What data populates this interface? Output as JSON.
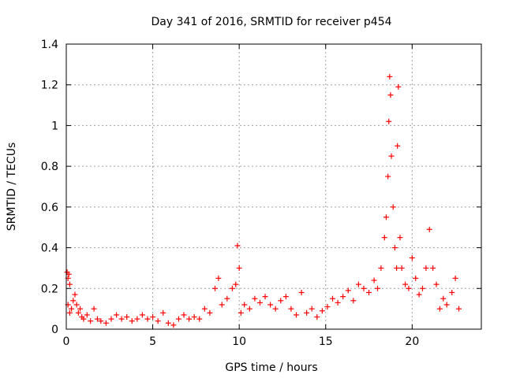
{
  "chart_data": {
    "type": "scatter",
    "title": "Day 341 of 2016, SRMTID for receiver p454",
    "xlabel": "GPS time / hours",
    "ylabel": "SRMTID / TECUs",
    "xlim": [
      0,
      24
    ],
    "ylim": [
      0,
      1.4
    ],
    "xticks": [
      0,
      5,
      10,
      15,
      20
    ],
    "xtick_labels": [
      "0",
      "5",
      "10",
      "15",
      "20"
    ],
    "yticks": [
      0,
      0.2,
      0.4,
      0.6,
      0.8,
      1.0,
      1.2,
      1.4
    ],
    "ytick_labels": [
      "0",
      "0.2",
      "0.4",
      "0.6",
      "0.8",
      "1",
      "1.2",
      "1.4"
    ],
    "grid": true,
    "marker": "plus",
    "series": [
      {
        "name": "p454",
        "color": "#ff0000",
        "points": [
          [
            0.05,
            0.28
          ],
          [
            0.1,
            0.25
          ],
          [
            0.15,
            0.27
          ],
          [
            0.2,
            0.22
          ],
          [
            0.1,
            0.12
          ],
          [
            0.2,
            0.08
          ],
          [
            0.3,
            0.1
          ],
          [
            0.4,
            0.14
          ],
          [
            0.5,
            0.17
          ],
          [
            0.6,
            0.12
          ],
          [
            0.7,
            0.08
          ],
          [
            0.8,
            0.1
          ],
          [
            0.9,
            0.06
          ],
          [
            1.0,
            0.05
          ],
          [
            1.2,
            0.07
          ],
          [
            1.4,
            0.04
          ],
          [
            1.6,
            0.1
          ],
          [
            1.8,
            0.05
          ],
          [
            2.0,
            0.04
          ],
          [
            2.3,
            0.03
          ],
          [
            2.6,
            0.05
          ],
          [
            2.9,
            0.07
          ],
          [
            3.2,
            0.05
          ],
          [
            3.5,
            0.06
          ],
          [
            3.8,
            0.04
          ],
          [
            4.1,
            0.05
          ],
          [
            4.4,
            0.07
          ],
          [
            4.7,
            0.05
          ],
          [
            5.0,
            0.06
          ],
          [
            5.3,
            0.04
          ],
          [
            5.6,
            0.08
          ],
          [
            5.9,
            0.03
          ],
          [
            6.2,
            0.02
          ],
          [
            6.5,
            0.05
          ],
          [
            6.8,
            0.07
          ],
          [
            7.1,
            0.05
          ],
          [
            7.4,
            0.06
          ],
          [
            7.7,
            0.05
          ],
          [
            8.0,
            0.1
          ],
          [
            8.3,
            0.08
          ],
          [
            8.6,
            0.2
          ],
          [
            8.8,
            0.25
          ],
          [
            9.0,
            0.12
          ],
          [
            9.3,
            0.15
          ],
          [
            9.6,
            0.2
          ],
          [
            9.8,
            0.22
          ],
          [
            9.9,
            0.41
          ],
          [
            10.0,
            0.3
          ],
          [
            10.1,
            0.08
          ],
          [
            10.3,
            0.12
          ],
          [
            10.6,
            0.1
          ],
          [
            10.9,
            0.15
          ],
          [
            11.2,
            0.13
          ],
          [
            11.5,
            0.16
          ],
          [
            11.8,
            0.12
          ],
          [
            12.1,
            0.1
          ],
          [
            12.4,
            0.14
          ],
          [
            12.7,
            0.16
          ],
          [
            13.0,
            0.1
          ],
          [
            13.3,
            0.07
          ],
          [
            13.6,
            0.18
          ],
          [
            13.9,
            0.08
          ],
          [
            14.2,
            0.1
          ],
          [
            14.5,
            0.06
          ],
          [
            14.8,
            0.09
          ],
          [
            15.1,
            0.11
          ],
          [
            15.4,
            0.15
          ],
          [
            15.7,
            0.13
          ],
          [
            16.0,
            0.16
          ],
          [
            16.3,
            0.19
          ],
          [
            16.6,
            0.14
          ],
          [
            16.9,
            0.22
          ],
          [
            17.2,
            0.2
          ],
          [
            17.5,
            0.18
          ],
          [
            17.8,
            0.24
          ],
          [
            18.0,
            0.2
          ],
          [
            18.2,
            0.3
          ],
          [
            18.4,
            0.45
          ],
          [
            18.5,
            0.55
          ],
          [
            18.6,
            0.75
          ],
          [
            18.65,
            1.02
          ],
          [
            18.7,
            1.24
          ],
          [
            18.75,
            1.15
          ],
          [
            18.8,
            0.85
          ],
          [
            18.9,
            0.6
          ],
          [
            19.0,
            0.4
          ],
          [
            19.1,
            0.3
          ],
          [
            19.15,
            0.9
          ],
          [
            19.2,
            1.19
          ],
          [
            19.3,
            0.45
          ],
          [
            19.4,
            0.3
          ],
          [
            19.6,
            0.22
          ],
          [
            19.8,
            0.2
          ],
          [
            20.0,
            0.35
          ],
          [
            20.2,
            0.25
          ],
          [
            20.4,
            0.17
          ],
          [
            20.6,
            0.2
          ],
          [
            20.8,
            0.3
          ],
          [
            21.0,
            0.49
          ],
          [
            21.2,
            0.3
          ],
          [
            21.4,
            0.22
          ],
          [
            21.6,
            0.1
          ],
          [
            21.8,
            0.15
          ],
          [
            22.0,
            0.12
          ],
          [
            22.3,
            0.18
          ],
          [
            22.5,
            0.25
          ],
          [
            22.7,
            0.1
          ]
        ]
      }
    ]
  }
}
